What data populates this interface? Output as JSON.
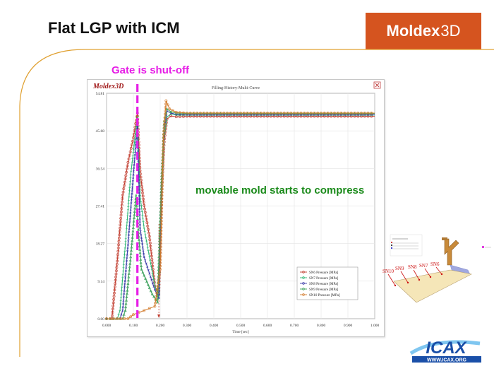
{
  "slide": {
    "title": "Flat LGP with  ICM",
    "brand_logo_main": "Moldex",
    "brand_logo_3d": "3D",
    "gate_annotation": "Gate is shut-off",
    "compress_annotation": "movable mold starts to compress",
    "icax_logo_text": "ICAX",
    "icax_logo_url": "WWW.ICAX.ORG",
    "colors": {
      "brand_orange": "#d5541f",
      "gate_magenta": "#e61ee6",
      "compress_green": "#1a8a1a",
      "frame_orange": "#e0a030"
    }
  },
  "chart_window": {
    "logo_text": "Moldex3D",
    "window_title": "Filling-History-Multi-Curve",
    "close_icon": "close-icon"
  },
  "diagram": {
    "labels": [
      "SN10",
      "SN9",
      "SN8",
      "SN7",
      "SN6"
    ]
  },
  "chart_data": {
    "type": "line",
    "title": "Filling-History-Multi-Curve",
    "xlabel": "Time [sec]",
    "ylabel": "",
    "xlim": [
      0.0,
      1.0
    ],
    "ylim": [
      0.0,
      54.81
    ],
    "xticks": [
      "0.000",
      "0.100",
      "0.200",
      "0.300",
      "0.400",
      "0.500",
      "0.600",
      "0.700",
      "0.800",
      "0.900",
      "1.000"
    ],
    "yticks": [
      "0.00",
      "9.14",
      "18.27",
      "27.41",
      "36.54",
      "45.68",
      "54.81"
    ],
    "grid": true,
    "legend_position": "bottom-right",
    "gate_shutoff_time": 0.115,
    "compress_start_time": 0.195,
    "series": [
      {
        "name": "SN6 Pressure [MPa]",
        "color": "#c0392b",
        "marker": "circle",
        "x": [
          0.0,
          0.02,
          0.04,
          0.06,
          0.08,
          0.1,
          0.115,
          0.125,
          0.14,
          0.16,
          0.18,
          0.195,
          0.205,
          0.215,
          0.225,
          0.24,
          0.26,
          0.3,
          0.4,
          0.6,
          0.8,
          1.0
        ],
        "y": [
          0.0,
          0.0,
          14.0,
          30.0,
          38.0,
          44.0,
          50.0,
          36.0,
          27.5,
          20.0,
          8.0,
          6.0,
          30.0,
          43.0,
          48.5,
          49.3,
          49.1,
          49.2,
          49.2,
          49.2,
          49.2,
          49.2
        ]
      },
      {
        "name": "SN7 Pressure [MPa]",
        "color": "#2bb673",
        "marker": "plus",
        "x": [
          0.0,
          0.04,
          0.05,
          0.07,
          0.09,
          0.115,
          0.125,
          0.14,
          0.16,
          0.18,
          0.195,
          0.205,
          0.215,
          0.225,
          0.24,
          0.26,
          0.3,
          0.4,
          0.6,
          0.8,
          1.0
        ],
        "y": [
          0.0,
          0.0,
          2.0,
          18.0,
          35.0,
          49.0,
          30.0,
          22.0,
          15.0,
          8.0,
          5.0,
          30.0,
          44.0,
          49.0,
          49.8,
          49.5,
          49.5,
          49.5,
          49.5,
          49.5,
          49.5
        ]
      },
      {
        "name": "SN8 Pressure [MPa]",
        "color": "#3a3aa8",
        "marker": "x",
        "x": [
          0.0,
          0.05,
          0.06,
          0.08,
          0.1,
          0.115,
          0.125,
          0.14,
          0.16,
          0.18,
          0.195,
          0.205,
          0.215,
          0.225,
          0.24,
          0.26,
          0.3,
          0.4,
          0.6,
          0.8,
          1.0
        ],
        "y": [
          0.0,
          0.0,
          2.0,
          18.0,
          35.0,
          47.0,
          22.0,
          15.0,
          11.0,
          7.0,
          5.0,
          32.0,
          46.0,
          50.5,
          50.0,
          49.7,
          49.6,
          49.6,
          49.6,
          49.6,
          49.6
        ]
      },
      {
        "name": "SN9 Pressure [MPa]",
        "color": "#3aa05a",
        "marker": "triangle",
        "x": [
          0.0,
          0.06,
          0.07,
          0.09,
          0.11,
          0.12,
          0.13,
          0.15,
          0.17,
          0.19,
          0.205,
          0.215,
          0.225,
          0.24,
          0.26,
          0.3,
          0.4,
          0.6,
          0.8,
          1.0
        ],
        "y": [
          0.0,
          0.0,
          2.0,
          15.0,
          30.0,
          20.0,
          12.0,
          9.0,
          6.0,
          4.0,
          34.0,
          48.0,
          51.0,
          50.3,
          50.0,
          49.9,
          49.9,
          49.9,
          49.9,
          49.9
        ]
      },
      {
        "name": "SN10 Pressure [MPa]",
        "color": "#d27a2a",
        "marker": "circle",
        "x": [
          0.0,
          0.08,
          0.1,
          0.12,
          0.14,
          0.16,
          0.18,
          0.2,
          0.212,
          0.222,
          0.235,
          0.26,
          0.3,
          0.4,
          0.6,
          0.8,
          1.0
        ],
        "y": [
          0.0,
          0.0,
          1.0,
          1.5,
          2.0,
          2.5,
          3.0,
          12.0,
          44.0,
          53.0,
          51.0,
          50.2,
          50.0,
          50.0,
          50.0,
          50.0,
          50.0
        ]
      }
    ]
  }
}
